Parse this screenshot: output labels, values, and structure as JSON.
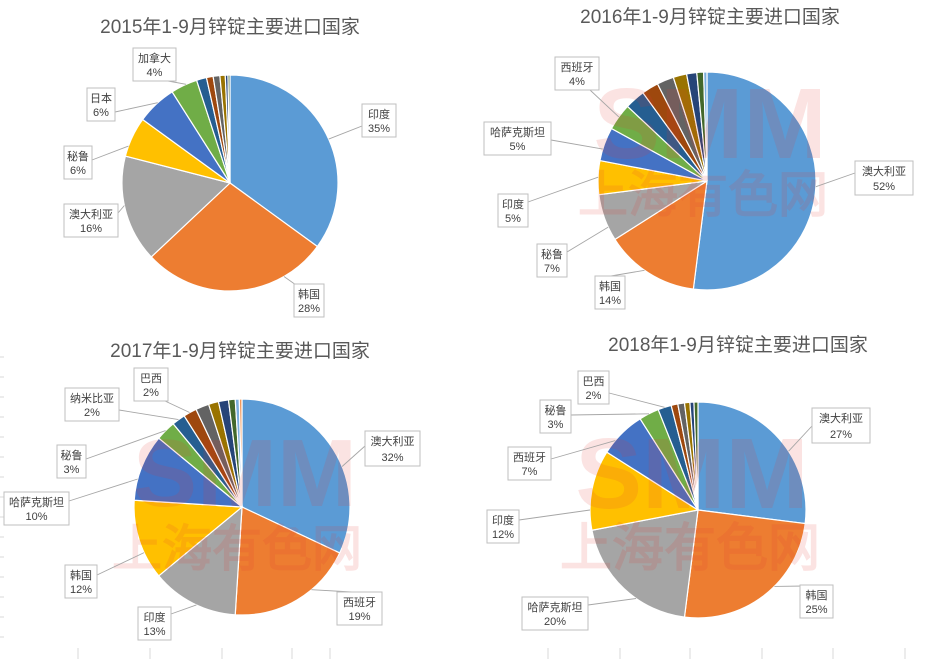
{
  "watermark": {
    "logo": "SMM",
    "text": "上海有色网"
  },
  "palette": [
    "#5B9BD5",
    "#ED7D31",
    "#A5A5A5",
    "#FFC000",
    "#4472C4",
    "#70AD47",
    "#255E91",
    "#9E480E",
    "#636363",
    "#997300",
    "#264478",
    "#43682B",
    "#7CAFDD",
    "#F1975A"
  ],
  "chart_data": [
    {
      "type": "pie",
      "title": "2015年1-9月锌锭主要进口国家",
      "unit": "%",
      "slices": [
        {
          "label": "印度",
          "value": 35
        },
        {
          "label": "韩国",
          "value": 28
        },
        {
          "label": "澳大利亚",
          "value": 16
        },
        {
          "label": "秘鲁",
          "value": 6
        },
        {
          "label": "日本",
          "value": 6
        },
        {
          "label": "加拿大",
          "value": 4
        },
        {
          "value": 1.5
        },
        {
          "value": 1
        },
        {
          "value": 1
        },
        {
          "value": 0.8
        },
        {
          "value": 0.4
        },
        {
          "value": 0.3
        }
      ]
    },
    {
      "type": "pie",
      "title": "2016年1-9月锌锭主要进口国家",
      "unit": "%",
      "slices": [
        {
          "label": "澳大利亚",
          "value": 52
        },
        {
          "label": "韩国",
          "value": 14
        },
        {
          "label": "秘鲁",
          "value": 7
        },
        {
          "label": "印度",
          "value": 5
        },
        {
          "label": "哈萨克斯坦",
          "value": 5
        },
        {
          "label": "西班牙",
          "value": 4
        },
        {
          "value": 3
        },
        {
          "value": 2.5
        },
        {
          "value": 2.5
        },
        {
          "value": 2
        },
        {
          "value": 1.5
        },
        {
          "value": 1
        },
        {
          "value": 0.5
        }
      ]
    },
    {
      "type": "pie",
      "title": "2017年1-9月锌锭主要进口国家",
      "unit": "%",
      "slices": [
        {
          "label": "澳大利亚",
          "value": 32
        },
        {
          "label": "西班牙",
          "value": 19
        },
        {
          "label": "印度",
          "value": 13
        },
        {
          "label": "韩国",
          "value": 12
        },
        {
          "label": "哈萨克斯坦",
          "value": 10
        },
        {
          "label": "秘鲁",
          "value": 3
        },
        {
          "label": "纳米比亚",
          "value": 2
        },
        {
          "label": "巴西",
          "value": 2
        },
        {
          "value": 2
        },
        {
          "value": 1.5
        },
        {
          "value": 1.5
        },
        {
          "value": 1
        },
        {
          "value": 0.6
        },
        {
          "value": 0.4
        }
      ]
    },
    {
      "type": "pie",
      "title": "2018年1-9月锌锭主要进口国家",
      "unit": "%",
      "slices": [
        {
          "label": "澳大利亚",
          "value": 27
        },
        {
          "label": "韩国",
          "value": 25
        },
        {
          "label": "哈萨克斯坦",
          "value": 20
        },
        {
          "label": "印度",
          "value": 12
        },
        {
          "label": "西班牙",
          "value": 7
        },
        {
          "label": "秘鲁",
          "value": 3
        },
        {
          "label": "巴西",
          "value": 2
        },
        {
          "value": 1
        },
        {
          "value": 1
        },
        {
          "value": 0.8
        },
        {
          "value": 0.6
        },
        {
          "value": 0.6
        }
      ]
    }
  ]
}
